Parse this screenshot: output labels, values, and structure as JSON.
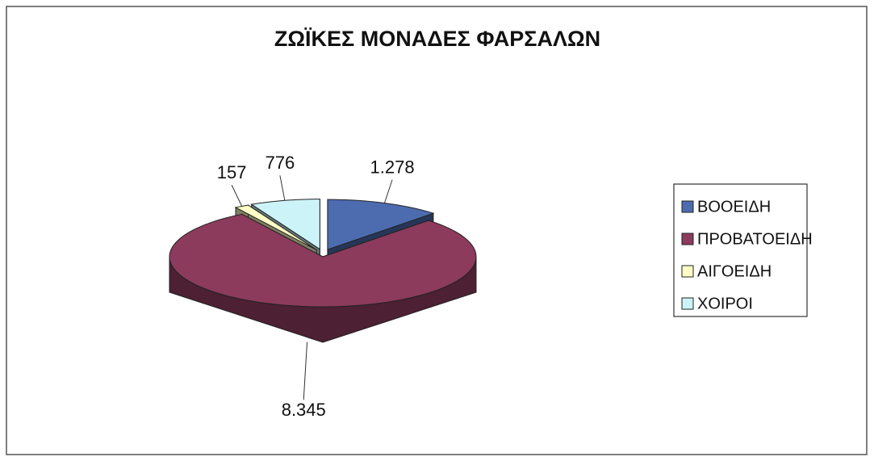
{
  "chart_data": {
    "type": "pie3d",
    "title": "ΖΩΪΚΕΣ ΜΟΝΑΔΕΣ ΦΑΡΣΑΛΩΝ",
    "categories": [
      "ΒΟΟΕΙΔΗ",
      "ΠΡΟΒΑΤΟΕΙΔΗ",
      "ΑΙΓΟΕΙΔΗ",
      "ΧΟΙΡΟΙ"
    ],
    "values": [
      1278,
      8345,
      157,
      776
    ],
    "value_labels": [
      "1.278",
      "8.345",
      "157",
      "776"
    ],
    "colors": [
      "#4d6cb0",
      "#8c3b5c",
      "#ffffc6",
      "#ccf4f8"
    ],
    "legend": "right"
  }
}
